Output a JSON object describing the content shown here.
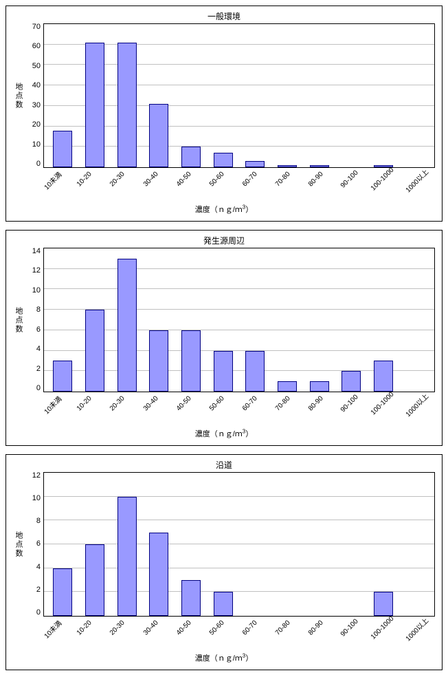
{
  "charts": [
    {
      "title": "一般環境",
      "type": "bar",
      "ylabel": "地点数",
      "xlabel_prefix": "濃度（ｎｇ/ｍ",
      "xlabel_sup": "3",
      "xlabel_suffix": "）",
      "categories": [
        "10未満",
        "10-20",
        "20-30",
        "30-40",
        "40-50",
        "50-60",
        "60-70",
        "70-80",
        "80-90",
        "90-100",
        "100-1000",
        "1000以上"
      ],
      "values": [
        18,
        61,
        61,
        31,
        10,
        7,
        3,
        1,
        1,
        0,
        1,
        0
      ],
      "ymax": 70,
      "ytick_step": 10,
      "bar_fill": "#9999ff",
      "bar_border": "#000080",
      "grid_color": "#c0c0c0",
      "background_color": "#ffffff",
      "title_fontsize": 12,
      "label_fontsize": 11,
      "tick_fontsize": 10,
      "bar_width": 0.6
    },
    {
      "title": "発生源周辺",
      "type": "bar",
      "ylabel": "地点数",
      "xlabel_prefix": "濃度（ｎｇ/ｍ",
      "xlabel_sup": "3",
      "xlabel_suffix": "）",
      "categories": [
        "10未満",
        "10-20",
        "20-30",
        "30-40",
        "40-50",
        "50-60",
        "60-70",
        "70-80",
        "80-90",
        "90-100",
        "100-1000",
        "1000以上"
      ],
      "values": [
        3,
        8,
        13,
        6,
        6,
        4,
        4,
        1,
        1,
        2,
        3,
        0
      ],
      "ymax": 14,
      "ytick_step": 2,
      "bar_fill": "#9999ff",
      "bar_border": "#000080",
      "grid_color": "#c0c0c0",
      "background_color": "#ffffff",
      "title_fontsize": 12,
      "label_fontsize": 11,
      "tick_fontsize": 10,
      "bar_width": 0.6
    },
    {
      "title": "沿道",
      "type": "bar",
      "ylabel": "地点数",
      "xlabel_prefix": "濃度（ｎｇ/ｍ",
      "xlabel_sup": "3",
      "xlabel_suffix": "）",
      "categories": [
        "10未満",
        "10-20",
        "20-30",
        "30-40",
        "40-50",
        "50-60",
        "60-70",
        "70-80",
        "80-90",
        "90-100",
        "100-1000",
        "1000以上"
      ],
      "values": [
        4,
        6,
        10,
        7,
        3,
        2,
        0,
        0,
        0,
        0,
        2,
        0
      ],
      "ymax": 12,
      "ytick_step": 2,
      "bar_fill": "#9999ff",
      "bar_border": "#000080",
      "grid_color": "#c0c0c0",
      "background_color": "#ffffff",
      "title_fontsize": 12,
      "label_fontsize": 11,
      "tick_fontsize": 10,
      "bar_width": 0.6
    }
  ]
}
